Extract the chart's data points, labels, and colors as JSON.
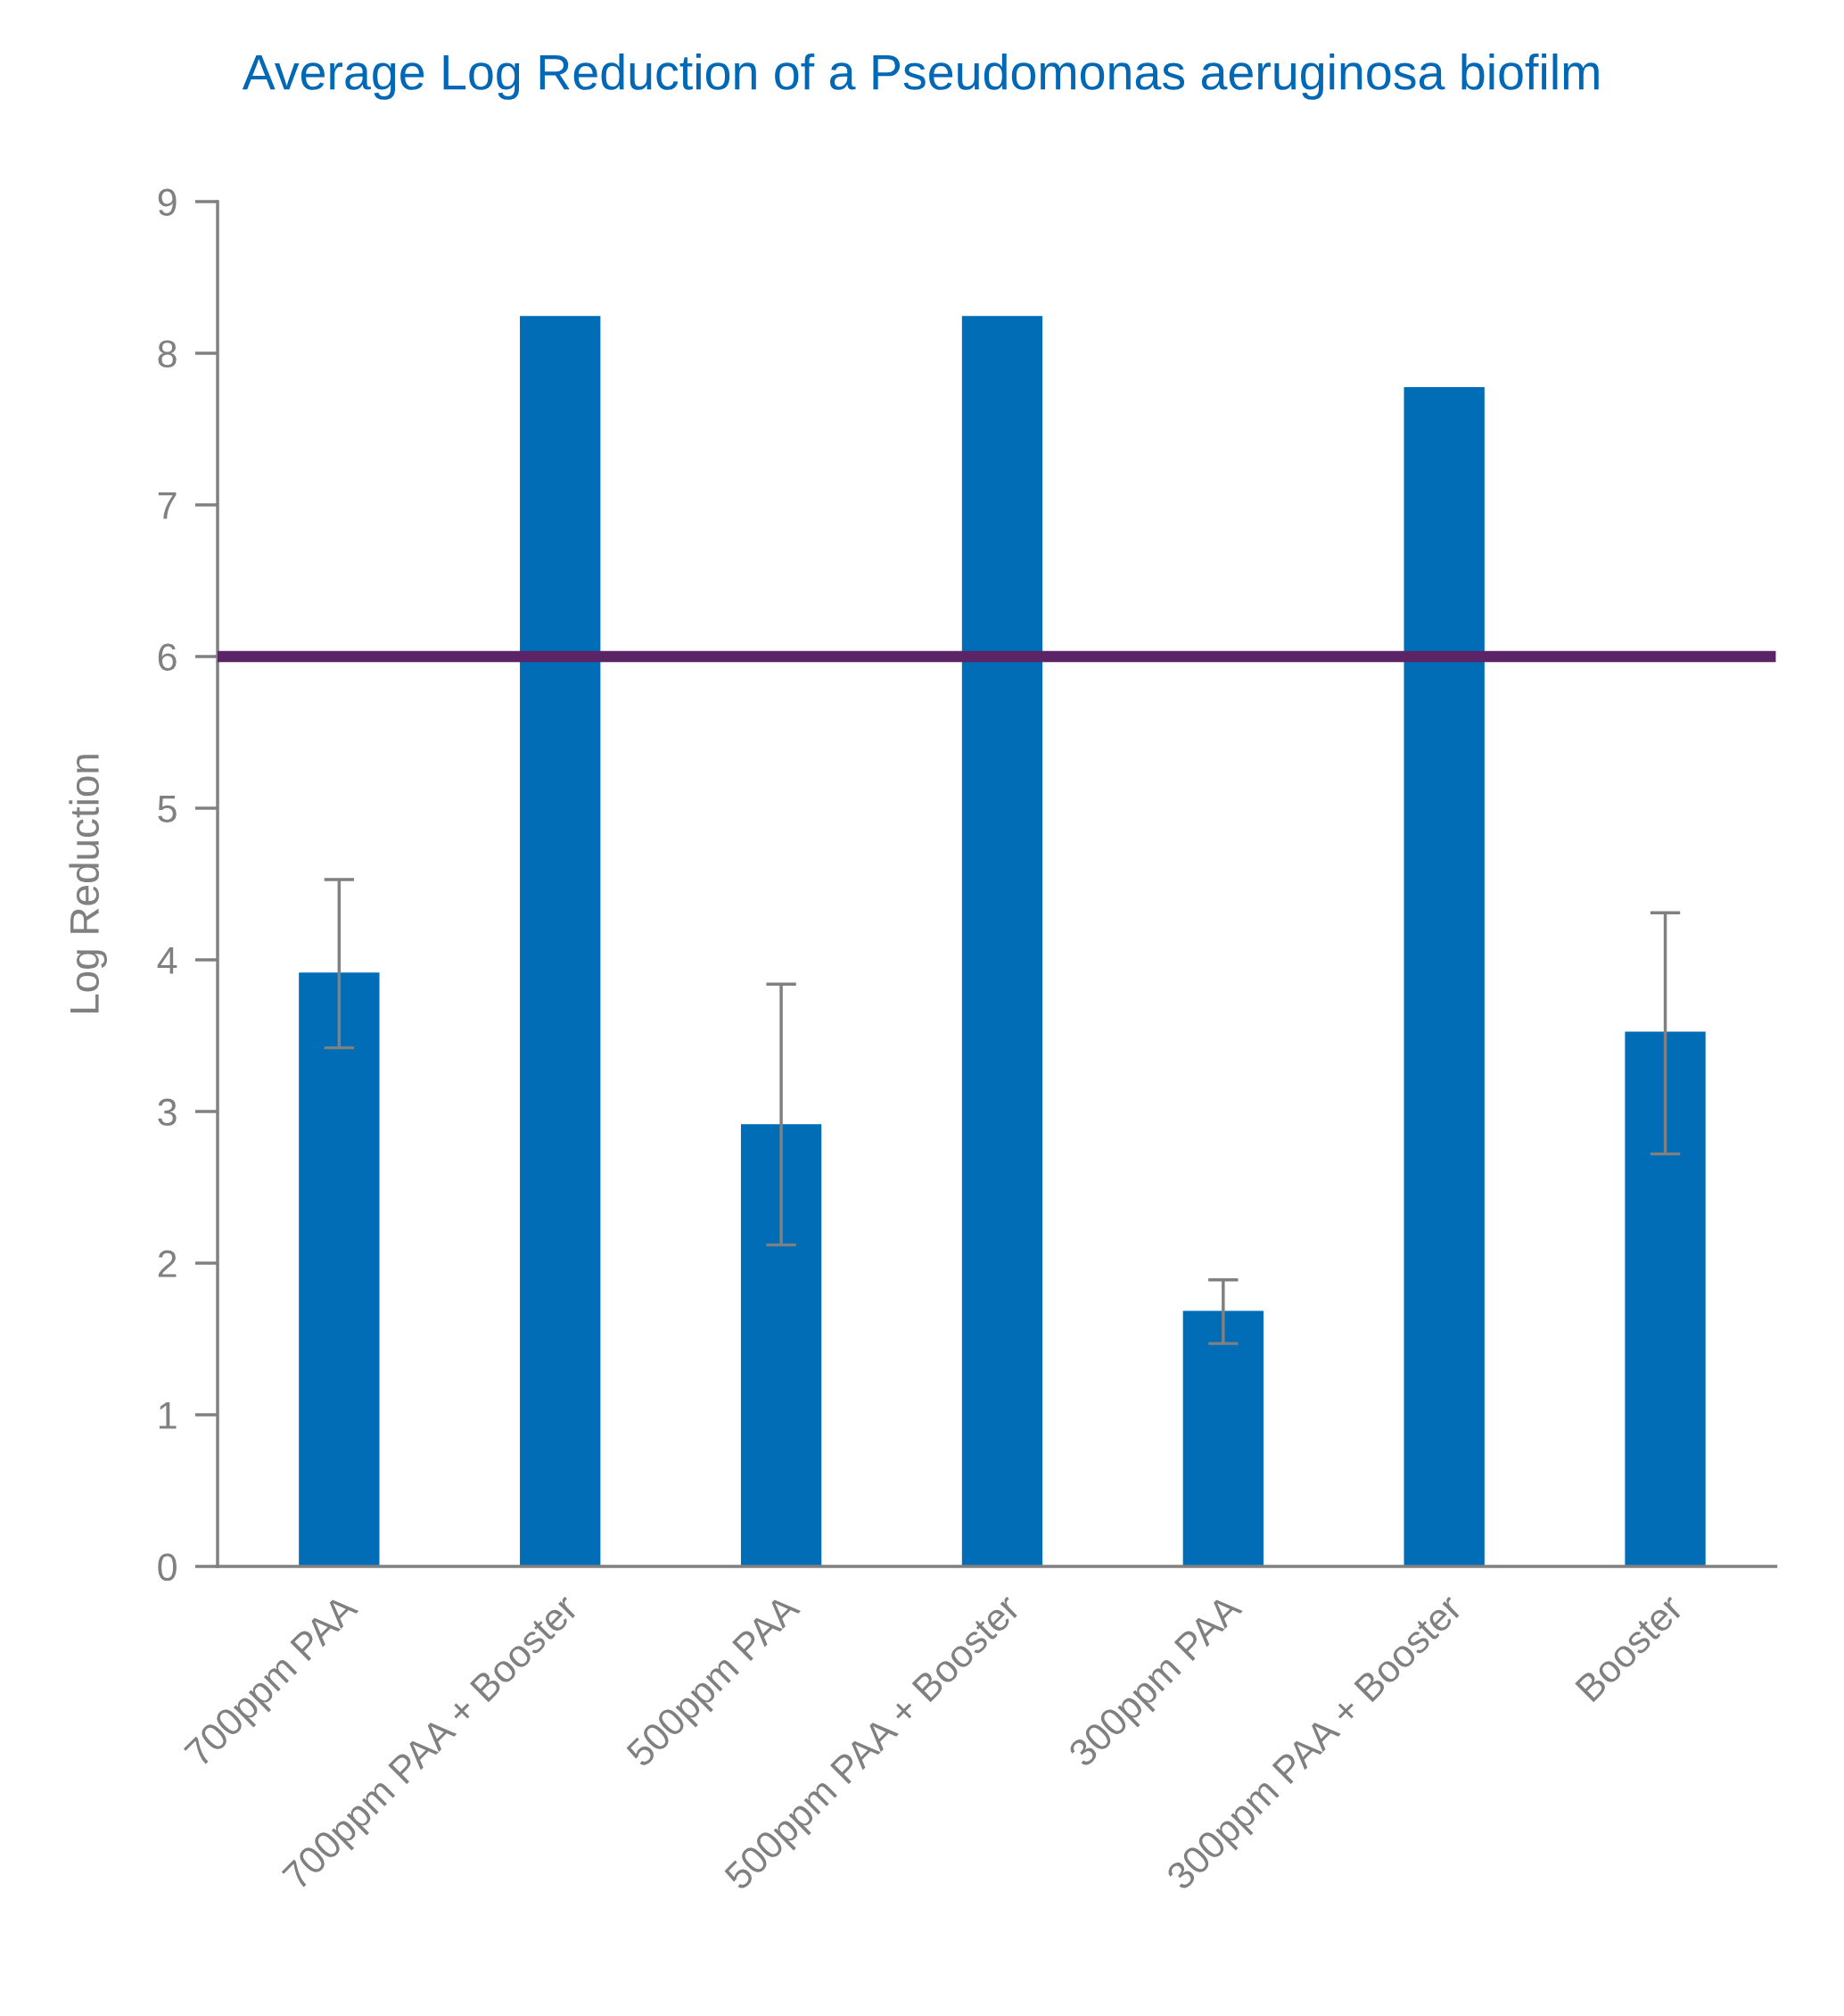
{
  "chart_data": {
    "type": "bar",
    "title": "Average Log Reduction of a Pseudomonas aeruginosa biofilm",
    "ylabel": "Log Reduction",
    "categories": [
      "700ppm PAA",
      "700ppm PAA + Booster",
      "500ppm PAA",
      "500ppm PAA + Booster",
      "300ppm PAA",
      "300ppm PAA + Booster",
      "Booster"
    ],
    "values": [
      3.92,
      8.25,
      2.92,
      8.25,
      1.69,
      7.78,
      3.53
    ],
    "errors": [
      [
        3.42,
        4.53
      ],
      null,
      [
        2.12,
        3.84
      ],
      null,
      [
        1.47,
        1.89
      ],
      null,
      [
        2.72,
        4.31
      ]
    ],
    "color": "#006db6",
    "ylim": [
      0,
      9
    ],
    "yticks": [
      0,
      1,
      2,
      3,
      4,
      5,
      6,
      7,
      8,
      9
    ],
    "ref_lines": [
      {
        "axis": "y",
        "value": 6,
        "color": "#5b2466"
      }
    ],
    "grid": false,
    "legend": false
  }
}
